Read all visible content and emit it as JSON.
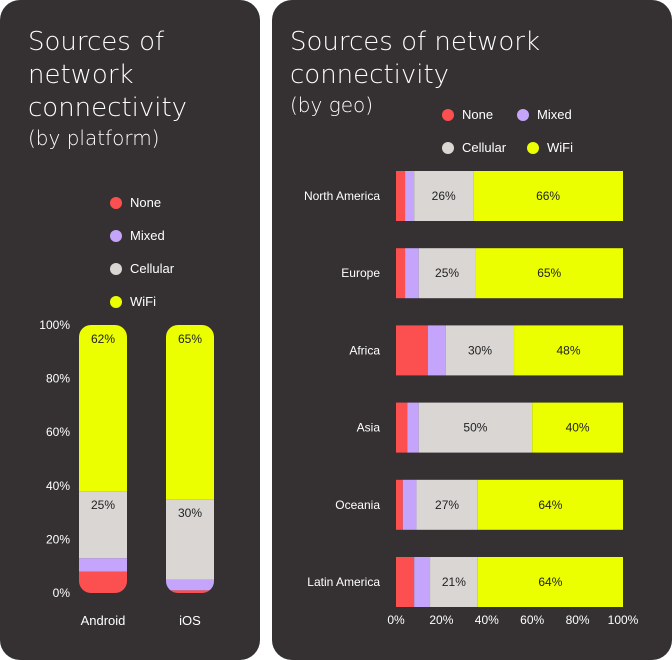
{
  "colors": {
    "background": "#353132",
    "None": "#fc5050",
    "Mixed": "#c5a5fb",
    "Cellular": "#d9d6d4",
    "WiFi": "#ebff00",
    "text": "#ffffff"
  },
  "left": {
    "title": "Sources of network connectivity",
    "subtitle": "(by platform)",
    "legend": [
      "None",
      "Mixed",
      "Cellular",
      "WiFi"
    ]
  },
  "right": {
    "title": "Sources of network connectivity",
    "subtitle": "(by geo)",
    "legend": [
      "None",
      "Mixed",
      "Cellular",
      "WiFi"
    ]
  },
  "chart_data": [
    {
      "type": "bar",
      "orientation": "vertical",
      "stacked": true,
      "categories": [
        "Android",
        "iOS"
      ],
      "series": [
        {
          "name": "None",
          "values": [
            8,
            1
          ]
        },
        {
          "name": "Mixed",
          "values": [
            5,
            4
          ]
        },
        {
          "name": "Cellular",
          "values": [
            25,
            30
          ]
        },
        {
          "name": "WiFi",
          "values": [
            62,
            65
          ]
        }
      ],
      "data_labels": {
        "Cellular": [
          "25%",
          "30%"
        ],
        "WiFi": [
          "62%",
          "65%"
        ]
      },
      "ylim": [
        0,
        100
      ],
      "yticks": [
        "0%",
        "20%",
        "40%",
        "60%",
        "80%",
        "100%"
      ],
      "title": "Sources of network connectivity",
      "subtitle": "(by platform)",
      "legend_position": "top",
      "grid": false
    },
    {
      "type": "bar",
      "orientation": "horizontal",
      "stacked": true,
      "categories": [
        "North America",
        "Europe",
        "Africa",
        "Asia",
        "Oceania",
        "Latin America"
      ],
      "series": [
        {
          "name": "None",
          "values": [
            4,
            4,
            14,
            5,
            3,
            8
          ]
        },
        {
          "name": "Mixed",
          "values": [
            4,
            6,
            8,
            5,
            6,
            7
          ]
        },
        {
          "name": "Cellular",
          "values": [
            26,
            25,
            30,
            50,
            27,
            21
          ]
        },
        {
          "name": "WiFi",
          "values": [
            66,
            65,
            48,
            40,
            64,
            64
          ]
        }
      ],
      "data_labels": {
        "Cellular": [
          "26%",
          "25%",
          "30%",
          "50%",
          "27%",
          "21%"
        ],
        "WiFi": [
          "66%",
          "65%",
          "48%",
          "40%",
          "64%",
          "64%"
        ]
      },
      "xlim": [
        0,
        100
      ],
      "xticks": [
        "0%",
        "20%",
        "40%",
        "60%",
        "80%",
        "100%"
      ],
      "title": "Sources of network connectivity",
      "subtitle": "(by geo)",
      "legend_position": "top",
      "grid": false
    }
  ]
}
